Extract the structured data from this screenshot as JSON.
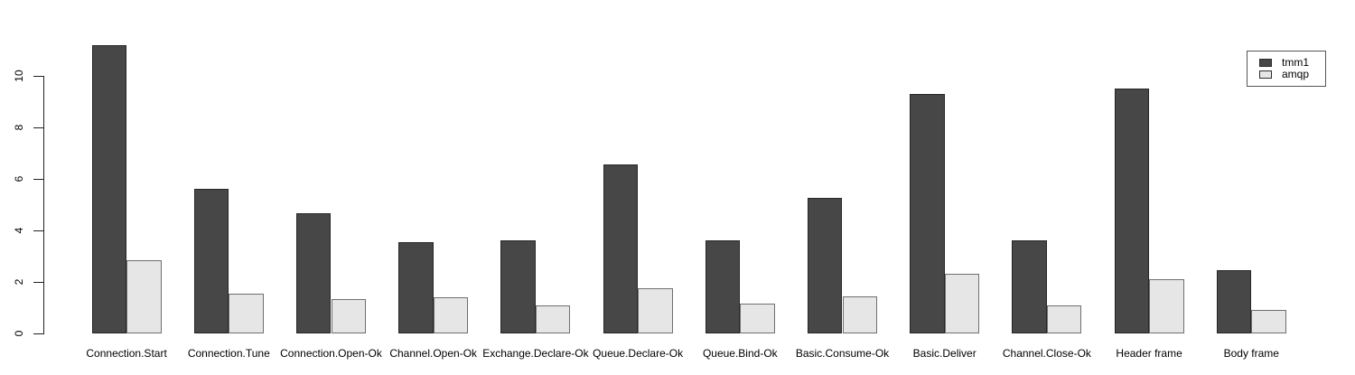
{
  "chart_data": {
    "type": "bar",
    "title": "",
    "xlabel": "",
    "ylabel": "",
    "categories": [
      "Connection.Start",
      "Connection.Tune",
      "Connection.Open-Ok",
      "Channel.Open-Ok",
      "Exchange.Declare-Ok",
      "Queue.Declare-Ok",
      "Queue.Bind-Ok",
      "Basic.Consume-Ok",
      "Basic.Deliver",
      "Channel.Close-Ok",
      "Header frame",
      "Body frame"
    ],
    "series": [
      {
        "name": "tmm1",
        "fill": "#474747",
        "border": "#262626",
        "values": [
          11.2,
          5.6,
          4.65,
          3.55,
          3.6,
          6.55,
          3.6,
          5.25,
          9.3,
          3.6,
          9.5,
          2.45
        ]
      },
      {
        "name": "amqp",
        "fill": "#e6e6e6",
        "border": "#6f6f6f",
        "values": [
          2.85,
          1.55,
          1.35,
          1.4,
          1.1,
          1.75,
          1.15,
          1.45,
          2.3,
          1.1,
          2.1,
          0.9
        ]
      }
    ],
    "ylim": [
      0,
      11.4
    ],
    "yticks": [
      0,
      2,
      4,
      6,
      8,
      10
    ],
    "grid": false,
    "legend_position": "top-right"
  }
}
